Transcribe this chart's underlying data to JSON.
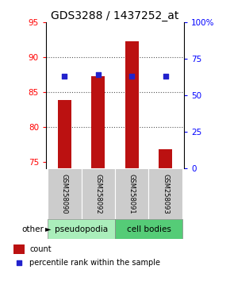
{
  "title": "GDS3288 / 1437252_at",
  "samples": [
    "GSM258090",
    "GSM258092",
    "GSM258091",
    "GSM258093"
  ],
  "bar_values": [
    83.8,
    87.3,
    92.3,
    76.8
  ],
  "percentile_values": [
    63.0,
    64.5,
    63.5,
    63.0
  ],
  "ylim_left": [
    74,
    95
  ],
  "ylim_right": [
    0,
    100
  ],
  "yticks_left": [
    75,
    80,
    85,
    90,
    95
  ],
  "yticks_right": [
    0,
    25,
    50,
    75,
    100
  ],
  "ytick_labels_right": [
    "0",
    "25",
    "50",
    "75",
    "100%"
  ],
  "bar_color": "#bb1111",
  "dot_color": "#2222cc",
  "bar_bottom": 74.0,
  "groups": [
    {
      "label": "pseudopodia",
      "color": "#aaeebb",
      "indices": [
        0,
        1
      ]
    },
    {
      "label": "cell bodies",
      "color": "#55cc77",
      "indices": [
        2,
        3
      ]
    }
  ],
  "group_label_other": "other",
  "legend_count_label": "count",
  "legend_percentile_label": "percentile rank within the sample",
  "grid_color": "#888888",
  "title_fontsize": 10,
  "tick_fontsize": 7.5,
  "label_fontsize": 7
}
